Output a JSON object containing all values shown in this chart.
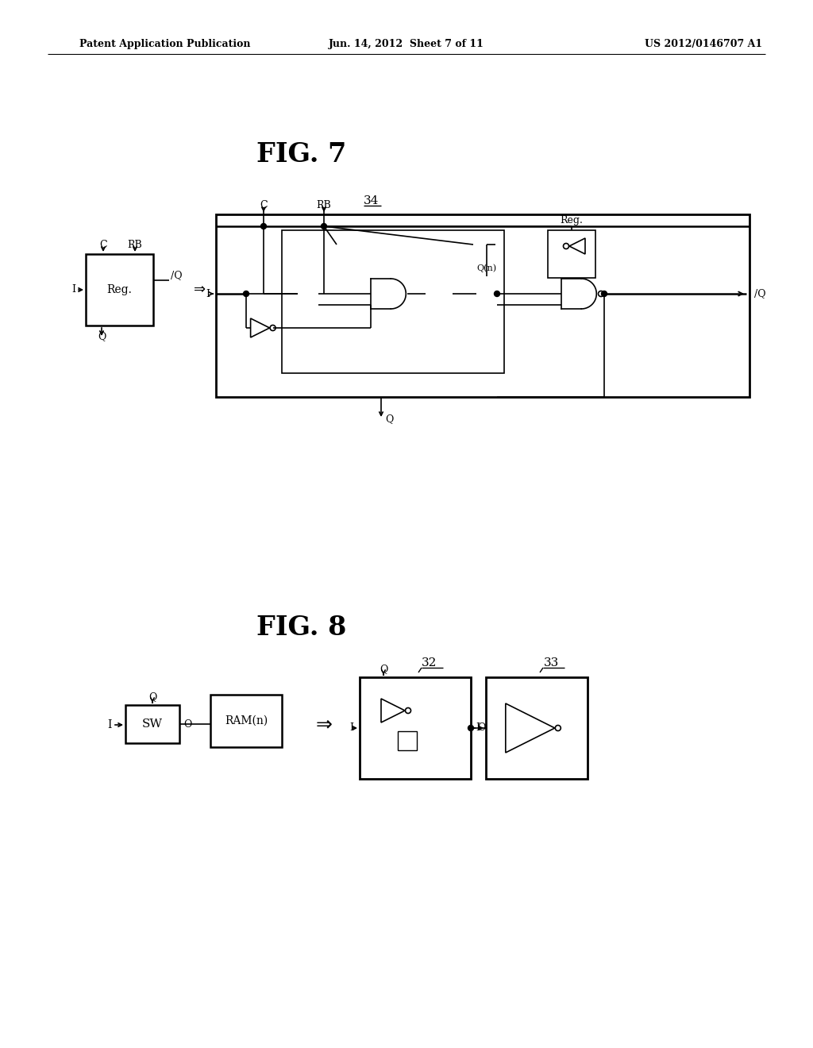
{
  "bg_color": "#ffffff",
  "header_left": "Patent Application Publication",
  "header_center": "Jun. 14, 2012  Sheet 7 of 11",
  "header_right": "US 2012/0146707 A1",
  "fig7_title": "FIG. 7",
  "fig8_title": "FIG. 8",
  "fig7_label": "34",
  "fig8_label32": "32",
  "fig8_label33": "33"
}
